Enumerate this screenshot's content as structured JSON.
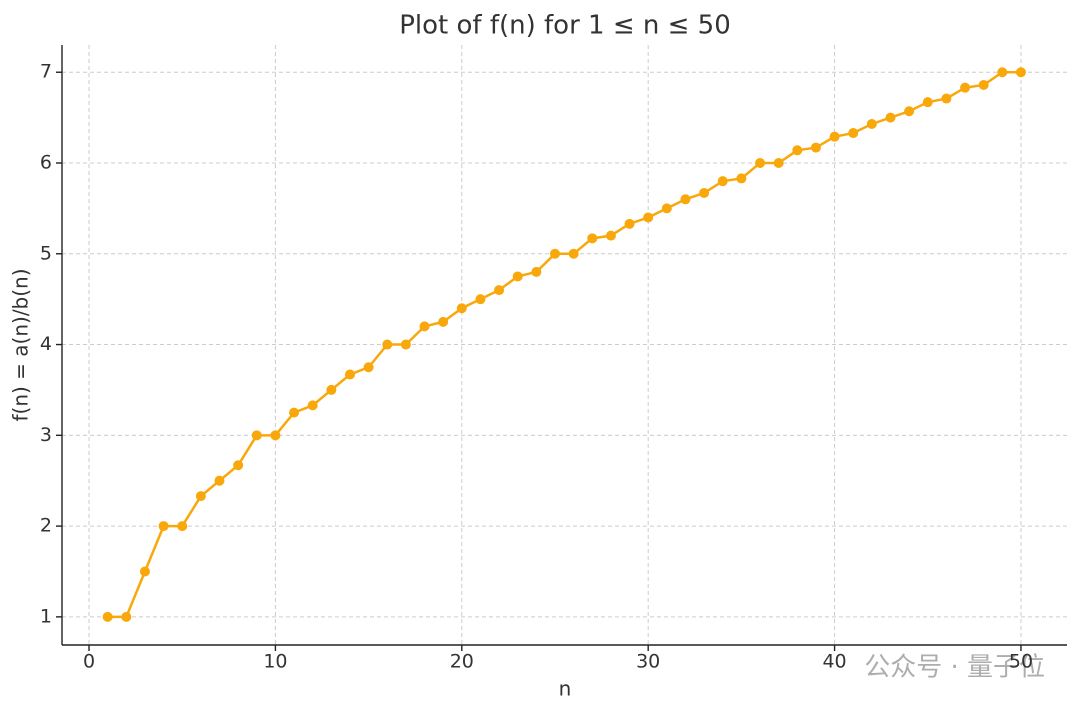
{
  "chart_data": {
    "type": "line",
    "title": "Plot of f(n) for 1 ≤ n ≤ 50",
    "x_label": "n",
    "y_label": "f(n) = a(n)/b(n)",
    "x": [
      1,
      2,
      3,
      4,
      5,
      6,
      7,
      8,
      9,
      10,
      11,
      12,
      13,
      14,
      15,
      16,
      17,
      18,
      19,
      20,
      21,
      22,
      23,
      24,
      25,
      26,
      27,
      28,
      29,
      30,
      31,
      32,
      33,
      34,
      35,
      36,
      37,
      38,
      39,
      40,
      41,
      42,
      43,
      44,
      45,
      46,
      47,
      48,
      49,
      50
    ],
    "series": [
      {
        "color": "#f9a80b",
        "values": [
          1,
          1,
          1.5,
          2,
          2,
          2.33,
          2.5,
          2.67,
          3,
          3,
          3.25,
          3.33,
          3.5,
          3.67,
          3.75,
          4,
          4,
          4.2,
          4.25,
          4.4,
          4.5,
          4.6,
          4.75,
          4.8,
          5,
          5,
          5.17,
          5.2,
          5.33,
          5.4,
          5.5,
          5.6,
          5.67,
          5.8,
          5.83,
          6,
          6,
          6.14,
          6.17,
          6.29,
          6.33,
          6.43,
          6.5,
          6.57,
          6.67,
          6.71,
          6.83,
          6.86,
          7,
          7
        ]
      }
    ],
    "xlim": [
      -1.45,
      52.47
    ],
    "ylim": [
      0.69,
      7.3
    ],
    "xticks": [
      0,
      10,
      20,
      30,
      40,
      50
    ],
    "yticks": [
      1,
      2,
      3,
      4,
      5,
      6,
      7
    ],
    "grid": true,
    "watermark": "公众号 · 量子位"
  }
}
